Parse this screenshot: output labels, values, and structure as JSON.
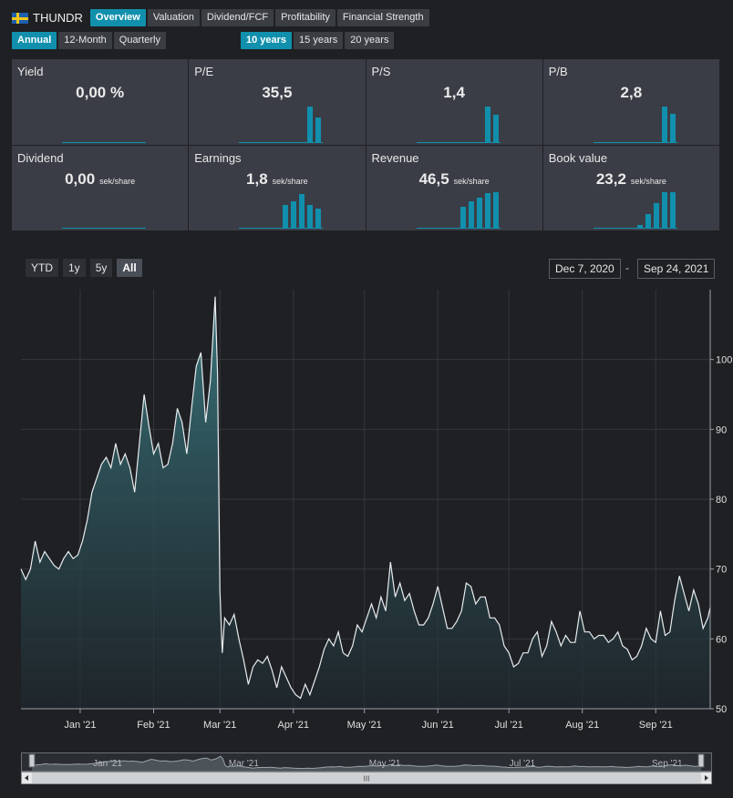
{
  "ticker": {
    "symbol": "THUNDR",
    "flag": "sweden-flag-icon"
  },
  "nav_tabs": [
    "Overview",
    "Valuation",
    "Dividend/FCF",
    "Profitability",
    "Financial Strength"
  ],
  "active_tab": "Overview",
  "periods": [
    "Annual",
    "12-Month",
    "Quarterly"
  ],
  "active_period": "Annual",
  "year_ranges": [
    "10 years",
    "15 years",
    "20 years"
  ],
  "active_years": "10 years",
  "accent": "#1190ad",
  "cards": [
    {
      "title": "Yield",
      "value": "0,00 %",
      "unit": "",
      "bars": []
    },
    {
      "title": "P/E",
      "value": "35,5",
      "unit": "",
      "bars": [
        1.0,
        0.7
      ]
    },
    {
      "title": "P/S",
      "value": "1,4",
      "unit": "",
      "bars": [
        1.0,
        0.78
      ]
    },
    {
      "title": "P/B",
      "value": "2,8",
      "unit": "",
      "bars": [
        1.0,
        0.8
      ]
    },
    {
      "title": "Dividend",
      "value": "0,00",
      "unit": "sek/share",
      "bars": []
    },
    {
      "title": "Earnings",
      "value": "1,8",
      "unit": "sek/share",
      "bars": [
        0.65,
        0.75,
        0.95,
        0.65,
        0.55
      ]
    },
    {
      "title": "Revenue",
      "value": "46,5",
      "unit": "sek/share",
      "bars": [
        0.6,
        0.75,
        0.85,
        0.97,
        1.0
      ]
    },
    {
      "title": "Book value",
      "value": "23,2",
      "unit": "sek/share",
      "bars": [
        0.1,
        0.4,
        0.7,
        1.0,
        1.0
      ]
    }
  ],
  "range_buttons": [
    "YTD",
    "1y",
    "5y",
    "All"
  ],
  "active_range": "All",
  "date_from": "Dec 7, 2020",
  "date_sep": "-",
  "date_to": "Sep 24, 2021",
  "navigator": {
    "scroll_glyph": "III",
    "labels": [
      "Jan '21",
      "Mar '21",
      "May '21",
      "Jul '21",
      "Sep '21"
    ]
  },
  "chart_data": {
    "type": "area",
    "x_start": "2020-12-07",
    "x_end": "2021-09-24",
    "xticks": [
      {
        "label": "Jan '21",
        "date": "2021-01-01"
      },
      {
        "label": "Feb '21",
        "date": "2021-02-01"
      },
      {
        "label": "Mar '21",
        "date": "2021-03-01"
      },
      {
        "label": "Apr '21",
        "date": "2021-04-01"
      },
      {
        "label": "May '21",
        "date": "2021-05-01"
      },
      {
        "label": "Jun '21",
        "date": "2021-06-01"
      },
      {
        "label": "Jul '21",
        "date": "2021-07-01"
      },
      {
        "label": "Aug '21",
        "date": "2021-08-01"
      },
      {
        "label": "Sep '21",
        "date": "2021-09-01"
      }
    ],
    "yticks": [
      50,
      60,
      70,
      80,
      90,
      100
    ],
    "ylim": [
      50,
      110
    ],
    "grid": true,
    "series": [
      {
        "points": [
          [
            "2020-12-07",
            70
          ],
          [
            "2020-12-09",
            68.5
          ],
          [
            "2020-12-11",
            70
          ],
          [
            "2020-12-13",
            74
          ],
          [
            "2020-12-15",
            71
          ],
          [
            "2020-12-17",
            72.5
          ],
          [
            "2020-12-19",
            71.5
          ],
          [
            "2020-12-21",
            70.5
          ],
          [
            "2020-12-23",
            70
          ],
          [
            "2020-12-25",
            71.5
          ],
          [
            "2020-12-27",
            72.5
          ],
          [
            "2020-12-29",
            71.5
          ],
          [
            "2020-12-31",
            72
          ],
          [
            "2021-01-02",
            74
          ],
          [
            "2021-01-04",
            77
          ],
          [
            "2021-01-06",
            81
          ],
          [
            "2021-01-08",
            83
          ],
          [
            "2021-01-10",
            85
          ],
          [
            "2021-01-12",
            86
          ],
          [
            "2021-01-14",
            84.5
          ],
          [
            "2021-01-16",
            88
          ],
          [
            "2021-01-18",
            85
          ],
          [
            "2021-01-20",
            86.5
          ],
          [
            "2021-01-22",
            84.5
          ],
          [
            "2021-01-24",
            81
          ],
          [
            "2021-01-26",
            88
          ],
          [
            "2021-01-28",
            95
          ],
          [
            "2021-01-30",
            90.5
          ],
          [
            "2021-02-01",
            86.5
          ],
          [
            "2021-02-03",
            88
          ],
          [
            "2021-02-05",
            84.5
          ],
          [
            "2021-02-07",
            85
          ],
          [
            "2021-02-09",
            88
          ],
          [
            "2021-02-11",
            93
          ],
          [
            "2021-02-13",
            91
          ],
          [
            "2021-02-15",
            86.5
          ],
          [
            "2021-02-17",
            93
          ],
          [
            "2021-02-19",
            99
          ],
          [
            "2021-02-21",
            101
          ],
          [
            "2021-02-23",
            91
          ],
          [
            "2021-02-25",
            97
          ],
          [
            "2021-02-27",
            109
          ],
          [
            "2021-02-28",
            98
          ],
          [
            "2021-03-01",
            67
          ],
          [
            "2021-03-02",
            58
          ],
          [
            "2021-03-03",
            63
          ],
          [
            "2021-03-05",
            62
          ],
          [
            "2021-03-07",
            63.5
          ],
          [
            "2021-03-09",
            60
          ],
          [
            "2021-03-11",
            57
          ],
          [
            "2021-03-13",
            53.5
          ],
          [
            "2021-03-15",
            56
          ],
          [
            "2021-03-17",
            57
          ],
          [
            "2021-03-19",
            56.5
          ],
          [
            "2021-03-21",
            57.5
          ],
          [
            "2021-03-23",
            55.5
          ],
          [
            "2021-03-25",
            53
          ],
          [
            "2021-03-27",
            56
          ],
          [
            "2021-03-29",
            54.5
          ],
          [
            "2021-03-31",
            53
          ],
          [
            "2021-04-02",
            52
          ],
          [
            "2021-04-04",
            51.5
          ],
          [
            "2021-04-06",
            53.5
          ],
          [
            "2021-04-08",
            52
          ],
          [
            "2021-04-10",
            54
          ],
          [
            "2021-04-12",
            56
          ],
          [
            "2021-04-14",
            58.5
          ],
          [
            "2021-04-16",
            60
          ],
          [
            "2021-04-18",
            59
          ],
          [
            "2021-04-20",
            61
          ],
          [
            "2021-04-22",
            58
          ],
          [
            "2021-04-24",
            57.5
          ],
          [
            "2021-04-26",
            59
          ],
          [
            "2021-04-28",
            62
          ],
          [
            "2021-04-30",
            61
          ],
          [
            "2021-05-02",
            63
          ],
          [
            "2021-05-04",
            65
          ],
          [
            "2021-05-06",
            63
          ],
          [
            "2021-05-08",
            66
          ],
          [
            "2021-05-10",
            64
          ],
          [
            "2021-05-12",
            71
          ],
          [
            "2021-05-14",
            66
          ],
          [
            "2021-05-16",
            68
          ],
          [
            "2021-05-18",
            65.5
          ],
          [
            "2021-05-20",
            66.5
          ],
          [
            "2021-05-22",
            64
          ],
          [
            "2021-05-24",
            62
          ],
          [
            "2021-05-26",
            62
          ],
          [
            "2021-05-28",
            63
          ],
          [
            "2021-05-30",
            65
          ],
          [
            "2021-06-01",
            67.5
          ],
          [
            "2021-06-03",
            64.5
          ],
          [
            "2021-06-05",
            61.5
          ],
          [
            "2021-06-07",
            61.5
          ],
          [
            "2021-06-09",
            62.5
          ],
          [
            "2021-06-11",
            64
          ],
          [
            "2021-06-13",
            68
          ],
          [
            "2021-06-15",
            67.5
          ],
          [
            "2021-06-17",
            65
          ],
          [
            "2021-06-19",
            66
          ],
          [
            "2021-06-21",
            66
          ],
          [
            "2021-06-23",
            63
          ],
          [
            "2021-06-25",
            63
          ],
          [
            "2021-06-27",
            62
          ],
          [
            "2021-06-29",
            59
          ],
          [
            "2021-07-01",
            58
          ],
          [
            "2021-07-03",
            56
          ],
          [
            "2021-07-05",
            56.5
          ],
          [
            "2021-07-07",
            58
          ],
          [
            "2021-07-09",
            58
          ],
          [
            "2021-07-11",
            60
          ],
          [
            "2021-07-13",
            61
          ],
          [
            "2021-07-15",
            57.5
          ],
          [
            "2021-07-17",
            59
          ],
          [
            "2021-07-19",
            62.5
          ],
          [
            "2021-07-21",
            61
          ],
          [
            "2021-07-23",
            59
          ],
          [
            "2021-07-25",
            60.5
          ],
          [
            "2021-07-27",
            59.5
          ],
          [
            "2021-07-29",
            59.5
          ],
          [
            "2021-07-31",
            64
          ],
          [
            "2021-08-02",
            61
          ],
          [
            "2021-08-04",
            61
          ],
          [
            "2021-08-06",
            60
          ],
          [
            "2021-08-08",
            60.5
          ],
          [
            "2021-08-10",
            60.5
          ],
          [
            "2021-08-12",
            59.5
          ],
          [
            "2021-08-14",
            60
          ],
          [
            "2021-08-16",
            61
          ],
          [
            "2021-08-18",
            59
          ],
          [
            "2021-08-20",
            58.5
          ],
          [
            "2021-08-22",
            57
          ],
          [
            "2021-08-24",
            57.5
          ],
          [
            "2021-08-26",
            59
          ],
          [
            "2021-08-28",
            61.5
          ],
          [
            "2021-08-30",
            60
          ],
          [
            "2021-09-01",
            59.5
          ],
          [
            "2021-09-03",
            64
          ],
          [
            "2021-09-05",
            60.5
          ],
          [
            "2021-09-07",
            61
          ],
          [
            "2021-09-09",
            65.5
          ],
          [
            "2021-09-11",
            69
          ],
          [
            "2021-09-13",
            66.5
          ],
          [
            "2021-09-15",
            64
          ],
          [
            "2021-09-17",
            67
          ],
          [
            "2021-09-19",
            65
          ],
          [
            "2021-09-21",
            61.5
          ],
          [
            "2021-09-23",
            63
          ],
          [
            "2021-09-24",
            64.5
          ]
        ]
      }
    ]
  }
}
